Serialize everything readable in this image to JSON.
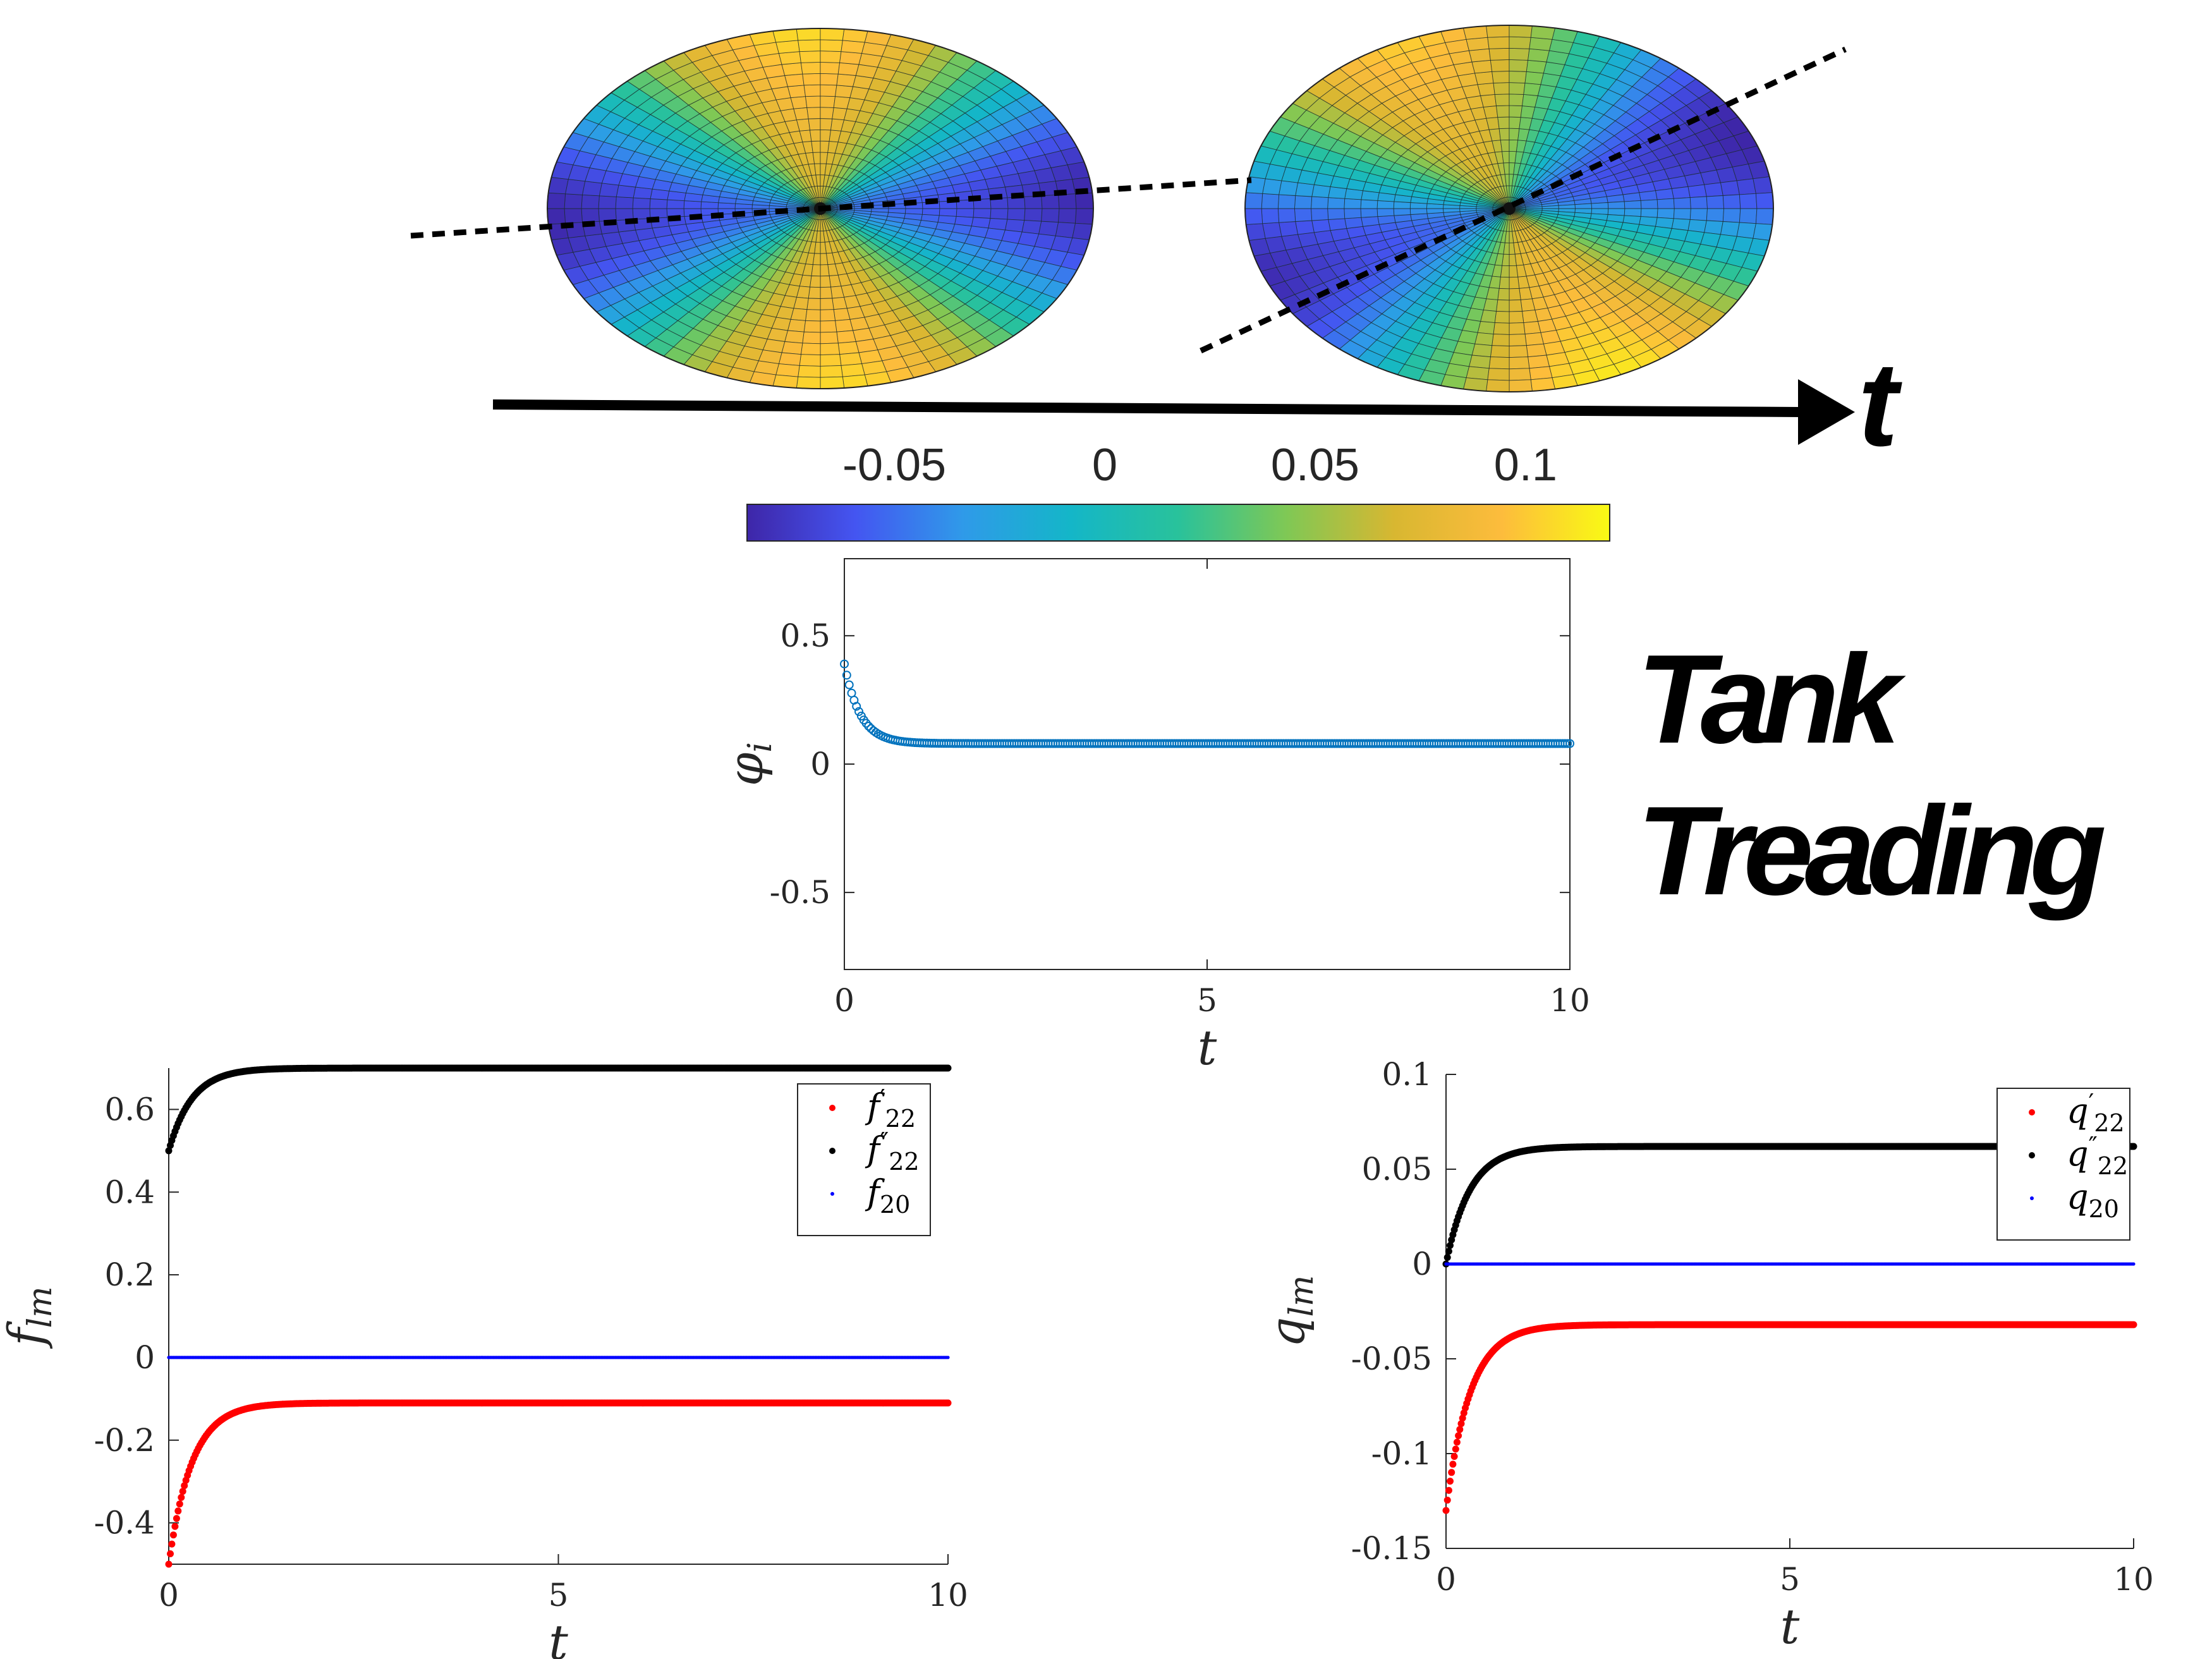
{
  "figure": {
    "time_arrow_label": "t",
    "title_line1": "Tank",
    "title_line2": "Treading"
  },
  "colorbar": {
    "ticks": [
      "-0.05",
      "0",
      "0.05",
      "0.1"
    ],
    "tick_values": [
      -0.05,
      0,
      0.05,
      0.1
    ],
    "range": [
      -0.085,
      0.12
    ],
    "colormap": [
      "#3e26a8",
      "#4455f1",
      "#2f9ae9",
      "#14b6c8",
      "#29c29b",
      "#7fc855",
      "#d8b731",
      "#fdbc3c",
      "#f9fa14"
    ]
  },
  "snapshots": {
    "count": 2,
    "axis_angles_deg": [
      -4,
      -24
    ],
    "dash_color": "#000000"
  },
  "chart_data": [
    {
      "type": "scatter",
      "id": "phi",
      "ylabel": "φ",
      "ylabel_sub": "i",
      "xlabel": "t",
      "xlim": [
        0,
        10
      ],
      "ylim": [
        -0.8,
        0.8
      ],
      "xticks": [
        "0",
        "5",
        "10"
      ],
      "yticks": [
        "0.5",
        "0",
        "-0.5"
      ],
      "ytick_values": [
        0.5,
        0,
        -0.5
      ],
      "series": [
        {
          "color": "#0072bd",
          "start": 0.39,
          "end": 0.08,
          "tau": 0.22
        }
      ]
    },
    {
      "type": "scatter",
      "id": "flm",
      "ylabel": "f",
      "ylabel_sub": "lm",
      "xlabel": "t",
      "xlim": [
        0,
        10
      ],
      "ylim": [
        -0.5,
        0.7
      ],
      "xticks": [
        "0",
        "5",
        "10"
      ],
      "yticks": [
        "0.6",
        "0.4",
        "0.2",
        "0",
        "-0.2",
        "-0.4"
      ],
      "ytick_values": [
        0.6,
        0.4,
        0.2,
        0,
        -0.2,
        -0.4
      ],
      "legend_position": "top-right",
      "series": [
        {
          "name": "f′22",
          "base": "f",
          "sup": "′",
          "sub": "22",
          "color": "#ff0000",
          "start": -0.5,
          "end": -0.11,
          "tau": 0.3
        },
        {
          "name": "f″22",
          "base": "f",
          "sup": "″",
          "sub": "22",
          "color": "#000000",
          "start": 0.5,
          "end": 0.7,
          "tau": 0.3
        },
        {
          "name": "f20",
          "base": "f",
          "sup": "",
          "sub": "20",
          "color": "#0000ff",
          "start": 0,
          "end": 0,
          "tau": 1
        }
      ]
    },
    {
      "type": "scatter",
      "id": "qlm",
      "ylabel": "q",
      "ylabel_sub": "lm",
      "xlabel": "t",
      "xlim": [
        0,
        10
      ],
      "ylim": [
        -0.15,
        0.1
      ],
      "xticks": [
        "0",
        "5",
        "10"
      ],
      "yticks": [
        "0.1",
        "0.05",
        "0",
        "-0.05",
        "-0.1",
        "-0.15"
      ],
      "ytick_values": [
        0.1,
        0.05,
        0,
        -0.05,
        -0.1,
        -0.15
      ],
      "legend_position": "top-right",
      "series": [
        {
          "name": "q′22",
          "base": "q",
          "sup": "′",
          "sub": "22",
          "color": "#ff0000",
          "start": -0.13,
          "end": -0.032,
          "tau": 0.35
        },
        {
          "name": "q″22",
          "base": "q",
          "sup": "″",
          "sub": "22",
          "color": "#000000",
          "start": 0.0,
          "end": 0.062,
          "tau": 0.35
        },
        {
          "name": "q20",
          "base": "q",
          "sup": "",
          "sub": "20",
          "color": "#0000ff",
          "start": 0,
          "end": 0,
          "tau": 1
        }
      ]
    }
  ]
}
